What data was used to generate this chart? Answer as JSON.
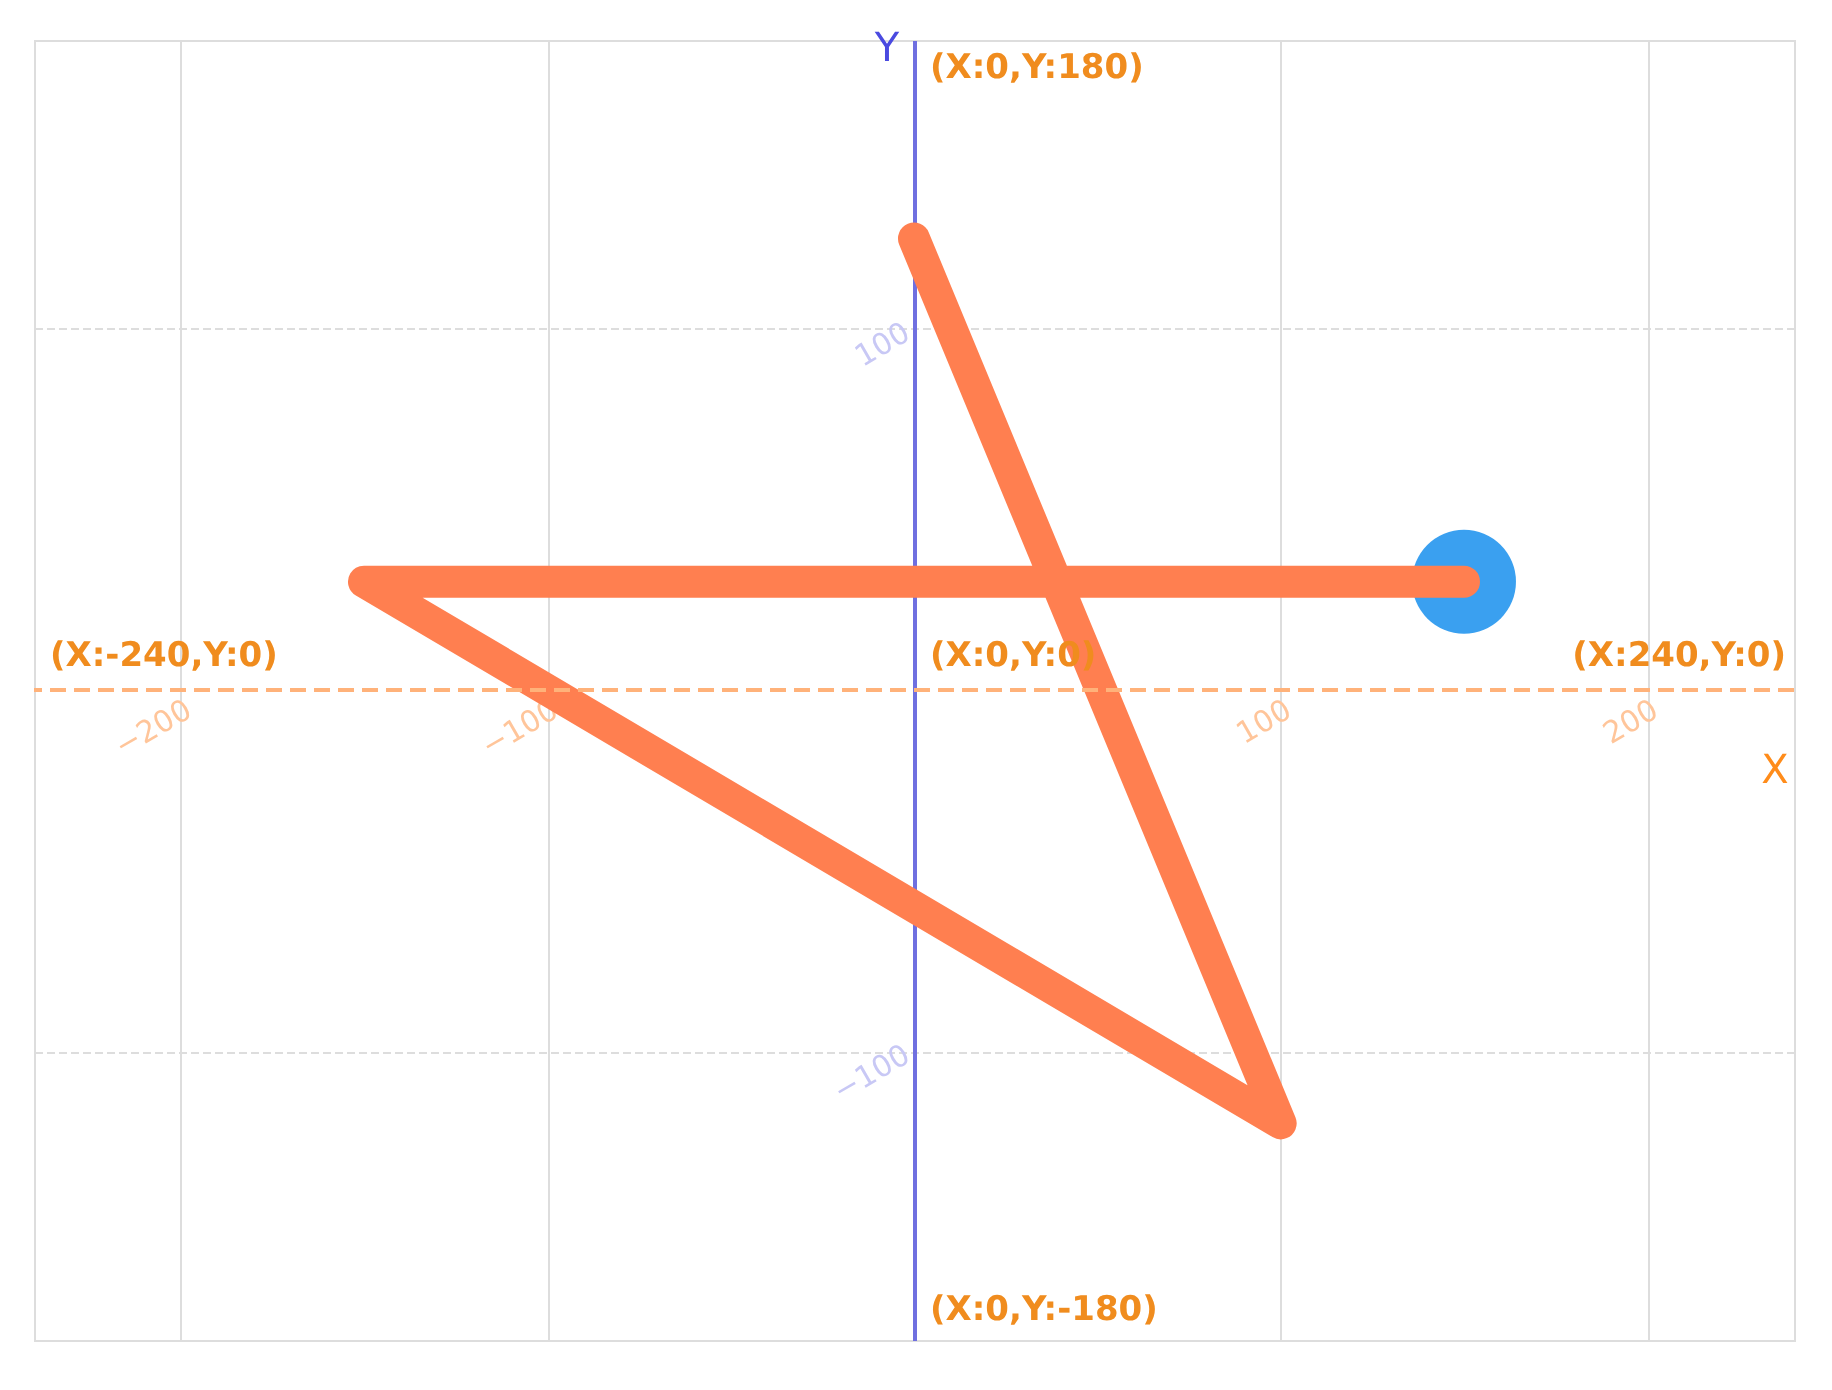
{
  "chart_data": {
    "type": "line",
    "xlabel": "X",
    "ylabel": "Y",
    "series": [
      {
        "color": "#ff7f50",
        "x": [
          0,
          100,
          -150,
          150
        ],
        "values": [
          125,
          -120,
          30,
          30
        ]
      },
      {
        "type": "scatter",
        "color": "#3aa0f0",
        "x": [
          150
        ],
        "values": [
          30
        ]
      }
    ],
    "xlim": [
      -240,
      240
    ],
    "ylim": [
      -180,
      180
    ],
    "xticks": [
      -200,
      -100,
      100,
      200
    ],
    "yticks": [
      -100,
      100
    ],
    "grid": true,
    "ref_lines": [
      {
        "axis": "y",
        "value": 0,
        "color": "#ffb27a",
        "line_style": "dashed"
      }
    ],
    "annotations": [
      "(X:0,Y:180)",
      {
        "text": "(X:-240,Y:0)",
        "x": -240,
        "y": 0
      },
      {
        "text": "(X:0,Y:0)",
        "x": 0,
        "y": 0
      },
      {
        "text": "(X:240,Y:0)",
        "x": 240,
        "y": 0
      },
      "(X:0,Y:-180)"
    ]
  }
}
